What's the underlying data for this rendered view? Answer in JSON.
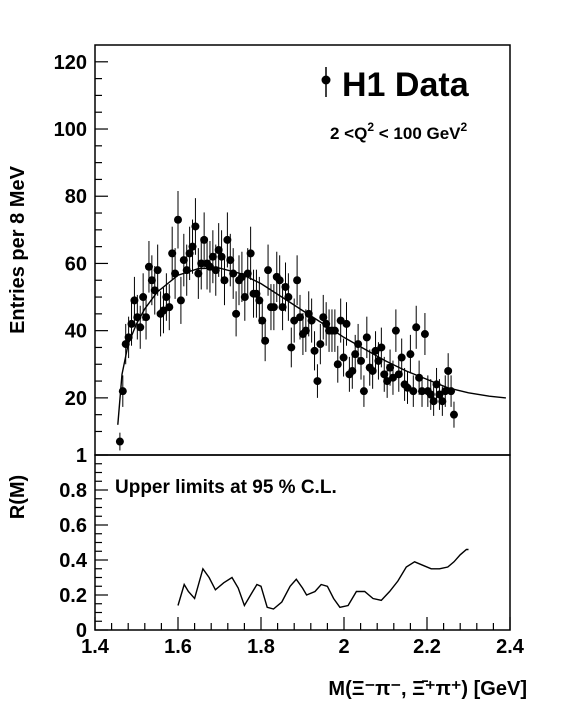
{
  "chart_data": [
    {
      "panel": "upper",
      "type": "scatter",
      "ylabel": "Entries per 8 MeV",
      "xlim": [
        1.4,
        2.4
      ],
      "ylim": [
        3,
        125
      ],
      "yticks": [
        "20",
        "40",
        "60",
        "80",
        "100",
        "120"
      ],
      "legend": {
        "marker": "filled-circle",
        "label": "H1 Data",
        "placement": "top-right"
      },
      "annotation": {
        "prefix": "2 <Q",
        "exp1": "2",
        "middle": " < 100 GeV",
        "exp2": "2"
      },
      "series": [
        {
          "name": "H1 Data",
          "style": "points-with-error-bars",
          "points": [
            {
              "x": 1.46,
              "y": 7
            },
            {
              "x": 1.467,
              "y": 22
            },
            {
              "x": 1.474,
              "y": 36
            },
            {
              "x": 1.481,
              "y": 38
            },
            {
              "x": 1.488,
              "y": 42
            },
            {
              "x": 1.495,
              "y": 49
            },
            {
              "x": 1.502,
              "y": 44
            },
            {
              "x": 1.509,
              "y": 41
            },
            {
              "x": 1.516,
              "y": 50
            },
            {
              "x": 1.523,
              "y": 44
            },
            {
              "x": 1.53,
              "y": 59
            },
            {
              "x": 1.537,
              "y": 55
            },
            {
              "x": 1.544,
              "y": 52
            },
            {
              "x": 1.551,
              "y": 58
            },
            {
              "x": 1.558,
              "y": 45
            },
            {
              "x": 1.565,
              "y": 46
            },
            {
              "x": 1.572,
              "y": 50
            },
            {
              "x": 1.579,
              "y": 47
            },
            {
              "x": 1.586,
              "y": 63
            },
            {
              "x": 1.593,
              "y": 57
            },
            {
              "x": 1.6,
              "y": 73
            },
            {
              "x": 1.607,
              "y": 49
            },
            {
              "x": 1.614,
              "y": 61
            },
            {
              "x": 1.621,
              "y": 58
            },
            {
              "x": 1.628,
              "y": 63
            },
            {
              "x": 1.635,
              "y": 65
            },
            {
              "x": 1.642,
              "y": 71
            },
            {
              "x": 1.649,
              "y": 57
            },
            {
              "x": 1.656,
              "y": 60
            },
            {
              "x": 1.663,
              "y": 67
            },
            {
              "x": 1.67,
              "y": 60
            },
            {
              "x": 1.677,
              "y": 59
            },
            {
              "x": 1.684,
              "y": 62
            },
            {
              "x": 1.691,
              "y": 58
            },
            {
              "x": 1.698,
              "y": 64
            },
            {
              "x": 1.705,
              "y": 62
            },
            {
              "x": 1.712,
              "y": 55
            },
            {
              "x": 1.719,
              "y": 67
            },
            {
              "x": 1.726,
              "y": 61
            },
            {
              "x": 1.733,
              "y": 57
            },
            {
              "x": 1.74,
              "y": 45
            },
            {
              "x": 1.747,
              "y": 55
            },
            {
              "x": 1.754,
              "y": 56
            },
            {
              "x": 1.761,
              "y": 50
            },
            {
              "x": 1.768,
              "y": 57
            },
            {
              "x": 1.775,
              "y": 63
            },
            {
              "x": 1.782,
              "y": 51
            },
            {
              "x": 1.789,
              "y": 51
            },
            {
              "x": 1.796,
              "y": 49
            },
            {
              "x": 1.803,
              "y": 43
            },
            {
              "x": 1.81,
              "y": 37
            },
            {
              "x": 1.817,
              "y": 58
            },
            {
              "x": 1.824,
              "y": 47
            },
            {
              "x": 1.831,
              "y": 47
            },
            {
              "x": 1.838,
              "y": 56
            },
            {
              "x": 1.845,
              "y": 55
            },
            {
              "x": 1.852,
              "y": 47
            },
            {
              "x": 1.859,
              "y": 53
            },
            {
              "x": 1.866,
              "y": 50
            },
            {
              "x": 1.873,
              "y": 35
            },
            {
              "x": 1.88,
              "y": 43
            },
            {
              "x": 1.887,
              "y": 55
            },
            {
              "x": 1.894,
              "y": 44
            },
            {
              "x": 1.901,
              "y": 39
            },
            {
              "x": 1.908,
              "y": 40
            },
            {
              "x": 1.915,
              "y": 45
            },
            {
              "x": 1.922,
              "y": 43
            },
            {
              "x": 1.929,
              "y": 34
            },
            {
              "x": 1.936,
              "y": 25
            },
            {
              "x": 1.943,
              "y": 36
            },
            {
              "x": 1.95,
              "y": 44
            },
            {
              "x": 1.957,
              "y": 42
            },
            {
              "x": 1.964,
              "y": 40
            },
            {
              "x": 1.971,
              "y": 40
            },
            {
              "x": 1.978,
              "y": 40
            },
            {
              "x": 1.985,
              "y": 30
            },
            {
              "x": 1.992,
              "y": 43
            },
            {
              "x": 1.999,
              "y": 32
            },
            {
              "x": 2.006,
              "y": 42
            },
            {
              "x": 2.013,
              "y": 27
            },
            {
              "x": 2.02,
              "y": 28
            },
            {
              "x": 2.027,
              "y": 33
            },
            {
              "x": 2.034,
              "y": 36
            },
            {
              "x": 2.041,
              "y": 31
            },
            {
              "x": 2.048,
              "y": 22
            },
            {
              "x": 2.055,
              "y": 38
            },
            {
              "x": 2.062,
              "y": 29
            },
            {
              "x": 2.069,
              "y": 28
            },
            {
              "x": 2.076,
              "y": 34
            },
            {
              "x": 2.083,
              "y": 31
            },
            {
              "x": 2.09,
              "y": 35
            },
            {
              "x": 2.097,
              "y": 27
            },
            {
              "x": 2.104,
              "y": 25
            },
            {
              "x": 2.111,
              "y": 29
            },
            {
              "x": 2.118,
              "y": 26
            },
            {
              "x": 2.125,
              "y": 40
            },
            {
              "x": 2.132,
              "y": 27
            },
            {
              "x": 2.139,
              "y": 32
            },
            {
              "x": 2.146,
              "y": 24
            },
            {
              "x": 2.153,
              "y": 23
            },
            {
              "x": 2.16,
              "y": 33
            },
            {
              "x": 2.167,
              "y": 22
            },
            {
              "x": 2.174,
              "y": 41
            },
            {
              "x": 2.181,
              "y": 26
            },
            {
              "x": 2.188,
              "y": 22
            },
            {
              "x": 2.195,
              "y": 39
            },
            {
              "x": 2.202,
              "y": 22
            },
            {
              "x": 2.209,
              "y": 21
            },
            {
              "x": 2.216,
              "y": 19
            },
            {
              "x": 2.223,
              "y": 24
            },
            {
              "x": 2.23,
              "y": 21
            },
            {
              "x": 2.237,
              "y": 19
            },
            {
              "x": 2.244,
              "y": 22
            },
            {
              "x": 2.251,
              "y": 28
            },
            {
              "x": 2.258,
              "y": 22
            },
            {
              "x": 2.265,
              "y": 15
            }
          ]
        },
        {
          "style": "smooth-curve",
          "points": [
            {
              "x": 1.455,
              "y": 12
            },
            {
              "x": 1.465,
              "y": 27
            },
            {
              "x": 1.48,
              "y": 36
            },
            {
              "x": 1.5,
              "y": 42
            },
            {
              "x": 1.52,
              "y": 46.5
            },
            {
              "x": 1.55,
              "y": 51.5
            },
            {
              "x": 1.6,
              "y": 56.5
            },
            {
              "x": 1.65,
              "y": 58.5
            },
            {
              "x": 1.7,
              "y": 58.6
            },
            {
              "x": 1.75,
              "y": 57
            },
            {
              "x": 1.8,
              "y": 54
            },
            {
              "x": 1.85,
              "y": 50
            },
            {
              "x": 1.9,
              "y": 46
            },
            {
              "x": 1.95,
              "y": 42
            },
            {
              "x": 2.0,
              "y": 38
            },
            {
              "x": 2.05,
              "y": 34.5
            },
            {
              "x": 2.1,
              "y": 31
            },
            {
              "x": 2.15,
              "y": 28
            },
            {
              "x": 2.2,
              "y": 25.5
            },
            {
              "x": 2.25,
              "y": 23
            },
            {
              "x": 2.3,
              "y": 21.5
            },
            {
              "x": 2.35,
              "y": 20.5
            },
            {
              "x": 2.39,
              "y": 20
            }
          ]
        }
      ]
    },
    {
      "panel": "lower",
      "type": "line",
      "ylabel": "R(M)",
      "xlabel": "M(Ξ⁻π⁻, Ξ̄⁺π⁺) [GeV]",
      "xlim": [
        1.4,
        2.4
      ],
      "ylim": [
        0,
        1
      ],
      "xticks": [
        "1.4",
        "1.6",
        "1.8",
        "2",
        "2.2",
        "2.4"
      ],
      "yticks": [
        "0",
        "0.2",
        "0.4",
        "0.6",
        "0.8",
        "1"
      ],
      "annotation": "Upper limits at 95 % C.L.",
      "series": [
        {
          "style": "line",
          "points": [
            {
              "x": 1.6,
              "y": 0.14
            },
            {
              "x": 1.615,
              "y": 0.26
            },
            {
              "x": 1.625,
              "y": 0.22
            },
            {
              "x": 1.64,
              "y": 0.18
            },
            {
              "x": 1.66,
              "y": 0.35
            },
            {
              "x": 1.675,
              "y": 0.3
            },
            {
              "x": 1.69,
              "y": 0.23
            },
            {
              "x": 1.71,
              "y": 0.27
            },
            {
              "x": 1.73,
              "y": 0.3
            },
            {
              "x": 1.745,
              "y": 0.24
            },
            {
              "x": 1.76,
              "y": 0.14
            },
            {
              "x": 1.775,
              "y": 0.2
            },
            {
              "x": 1.79,
              "y": 0.26
            },
            {
              "x": 1.8,
              "y": 0.25
            },
            {
              "x": 1.815,
              "y": 0.13
            },
            {
              "x": 1.83,
              "y": 0.12
            },
            {
              "x": 1.85,
              "y": 0.16
            },
            {
              "x": 1.87,
              "y": 0.25
            },
            {
              "x": 1.885,
              "y": 0.29
            },
            {
              "x": 1.9,
              "y": 0.24
            },
            {
              "x": 1.91,
              "y": 0.2
            },
            {
              "x": 1.93,
              "y": 0.22
            },
            {
              "x": 1.945,
              "y": 0.26
            },
            {
              "x": 1.96,
              "y": 0.25
            },
            {
              "x": 1.975,
              "y": 0.18
            },
            {
              "x": 1.99,
              "y": 0.13
            },
            {
              "x": 2.01,
              "y": 0.14
            },
            {
              "x": 2.03,
              "y": 0.22
            },
            {
              "x": 2.05,
              "y": 0.22
            },
            {
              "x": 2.07,
              "y": 0.18
            },
            {
              "x": 2.09,
              "y": 0.17
            },
            {
              "x": 2.11,
              "y": 0.22
            },
            {
              "x": 2.13,
              "y": 0.28
            },
            {
              "x": 2.15,
              "y": 0.36
            },
            {
              "x": 2.17,
              "y": 0.39
            },
            {
              "x": 2.19,
              "y": 0.37
            },
            {
              "x": 2.21,
              "y": 0.35
            },
            {
              "x": 2.23,
              "y": 0.35
            },
            {
              "x": 2.25,
              "y": 0.36
            },
            {
              "x": 2.265,
              "y": 0.39
            },
            {
              "x": 2.28,
              "y": 0.43
            },
            {
              "x": 2.295,
              "y": 0.46
            },
            {
              "x": 2.3,
              "y": 0.46
            }
          ]
        }
      ]
    }
  ]
}
